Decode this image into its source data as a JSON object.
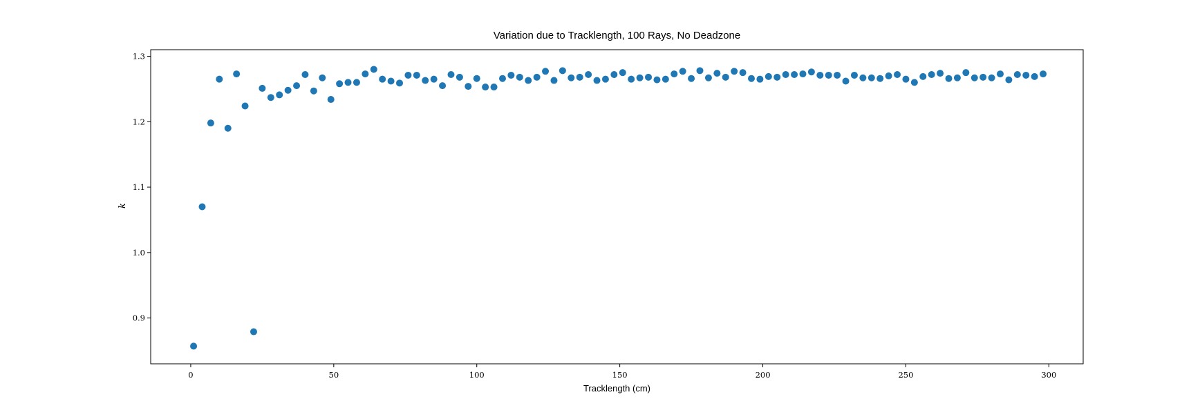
{
  "chart_data": {
    "type": "scatter",
    "title": "Variation due to Tracklength, 100 Rays, No Deadzone",
    "xlabel": "Tracklength (cm)",
    "ylabel": "k",
    "xlim": [
      -14,
      312
    ],
    "ylim": [
      0.83,
      1.31
    ],
    "xticks": [
      0,
      50,
      100,
      150,
      200,
      250,
      300
    ],
    "yticks": [
      0.9,
      1.0,
      1.1,
      1.2,
      1.3
    ],
    "xtick_labels": [
      "0",
      "50",
      "100",
      "150",
      "200",
      "250",
      "300"
    ],
    "ytick_labels": [
      "0.9",
      "1.0",
      "1.1",
      "1.2",
      "1.3"
    ],
    "grid": false,
    "series": [
      {
        "color": "#1f77b4",
        "x": [
          1,
          4,
          7,
          10,
          13,
          16,
          19,
          22,
          25,
          28,
          31,
          34,
          37,
          40,
          43,
          46,
          49,
          52,
          55,
          58,
          61,
          64,
          67,
          70,
          73,
          76,
          79,
          82,
          85,
          88,
          91,
          94,
          97,
          100,
          103,
          106,
          109,
          112,
          115,
          118,
          121,
          124,
          127,
          130,
          133,
          136,
          139,
          142,
          145,
          148,
          151,
          154,
          157,
          160,
          163,
          166,
          169,
          172,
          175,
          178,
          181,
          184,
          187,
          190,
          193,
          196,
          199,
          202,
          205,
          208,
          211,
          214,
          217,
          220,
          223,
          226,
          229,
          232,
          235,
          238,
          241,
          244,
          247,
          250,
          253,
          256,
          259,
          262,
          265,
          268,
          271,
          274,
          277,
          280,
          283,
          286,
          289,
          292,
          295,
          298
        ],
        "y": [
          0.857,
          1.07,
          1.198,
          1.265,
          1.19,
          1.273,
          1.224,
          0.879,
          1.251,
          1.237,
          1.241,
          1.248,
          1.255,
          1.272,
          1.247,
          1.267,
          1.234,
          1.258,
          1.26,
          1.26,
          1.273,
          1.28,
          1.265,
          1.262,
          1.259,
          1.271,
          1.271,
          1.263,
          1.265,
          1.255,
          1.272,
          1.268,
          1.254,
          1.266,
          1.253,
          1.253,
          1.266,
          1.271,
          1.268,
          1.263,
          1.268,
          1.277,
          1.263,
          1.278,
          1.267,
          1.268,
          1.272,
          1.263,
          1.265,
          1.272,
          1.275,
          1.265,
          1.267,
          1.268,
          1.264,
          1.265,
          1.273,
          1.277,
          1.266,
          1.278,
          1.267,
          1.274,
          1.268,
          1.277,
          1.275,
          1.266,
          1.265,
          1.269,
          1.268,
          1.272,
          1.272,
          1.273,
          1.276,
          1.271,
          1.271,
          1.271,
          1.262,
          1.271,
          1.267,
          1.267,
          1.266,
          1.27,
          1.272,
          1.265,
          1.26,
          1.269,
          1.272,
          1.274,
          1.266,
          1.267,
          1.275,
          1.267,
          1.268,
          1.267,
          1.273,
          1.264,
          1.272,
          1.271,
          1.269,
          1.273
        ]
      }
    ]
  }
}
